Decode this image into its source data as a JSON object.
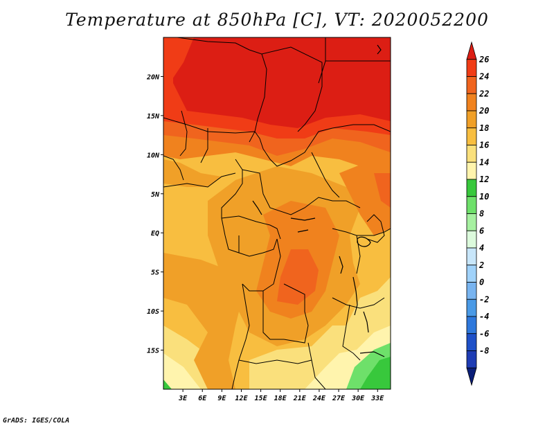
{
  "title": "Temperature at 850hPa [C], VT: 2020052200",
  "footer": "GrADS: IGES/COLA",
  "map": {
    "lat_labels": [
      "20N",
      "15N",
      "10N",
      "5N",
      "EQ",
      "5S",
      "10S",
      "15S"
    ],
    "lat_values": [
      20,
      15,
      10,
      5,
      0,
      -5,
      -10,
      -15
    ],
    "lon_labels": [
      "3E",
      "6E",
      "9E",
      "12E",
      "15E",
      "18E",
      "21E",
      "24E",
      "27E",
      "30E",
      "33E"
    ],
    "lon_values": [
      3,
      6,
      9,
      12,
      15,
      18,
      21,
      24,
      27,
      30,
      33
    ],
    "lon_range": [
      0,
      35
    ],
    "lat_range": [
      -20,
      25
    ]
  },
  "colorbar": {
    "labels": [
      "26",
      "24",
      "22",
      "20",
      "18",
      "16",
      "14",
      "12",
      "10",
      "8",
      "6",
      "4",
      "2",
      "0",
      "-2",
      "-4",
      "-6",
      "-8"
    ],
    "colors": [
      "#dc1e14",
      "#f03c16",
      "#f0641e",
      "#f0821e",
      "#f0a028",
      "#f8be40",
      "#fae07c",
      "#fff4ad",
      "#38c83c",
      "#6ee06a",
      "#a6f0a0",
      "#dcfadc",
      "#c8e6fa",
      "#a0d2fa",
      "#78b4f0",
      "#4a9ae6",
      "#2e78dc",
      "#1e50c8",
      "#1e3cb4",
      "#0a1e78"
    ]
  }
}
